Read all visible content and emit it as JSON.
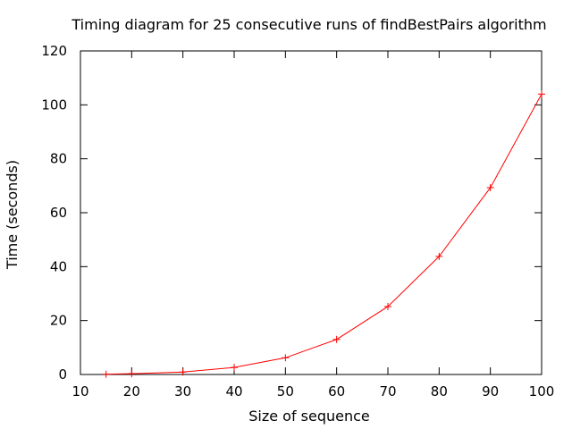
{
  "chart_data": {
    "type": "line",
    "title": "Timing diagram for 25 consecutive runs of findBestPairs algorithm",
    "xlabel": "Size of sequence",
    "ylabel": "Time (seconds)",
    "xlim": [
      10,
      100
    ],
    "ylim": [
      0,
      120
    ],
    "xticks": [
      10,
      20,
      30,
      40,
      50,
      60,
      70,
      80,
      90,
      100
    ],
    "yticks": [
      0,
      20,
      40,
      60,
      80,
      100,
      120
    ],
    "grid": false,
    "legend": "none",
    "series": [
      {
        "color": "#ff0000",
        "marker": "+",
        "x": [
          15,
          20,
          30,
          40,
          50,
          60,
          70,
          80,
          90,
          100
        ],
        "y": [
          0.1,
          0.3,
          0.9,
          2.6,
          6.2,
          13.0,
          25.2,
          43.8,
          69.3,
          104.0
        ]
      }
    ]
  }
}
